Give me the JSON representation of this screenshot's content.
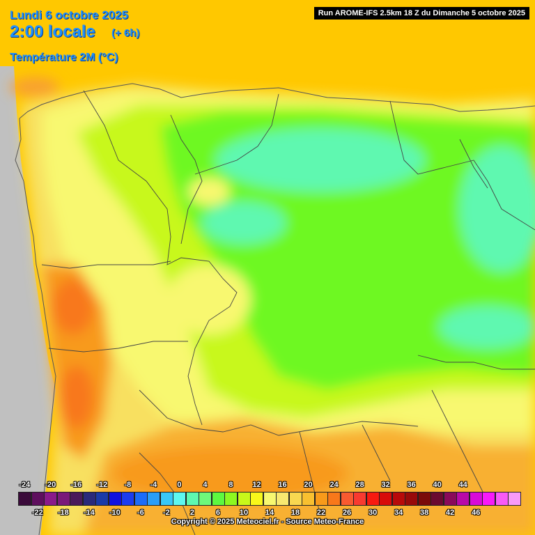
{
  "header": {
    "date": "Lundi 6 octobre 2025",
    "time": "2:00 locale",
    "offset": "(+ 6h)",
    "variable": "Température 2M (°C)",
    "run": "Run AROME-IFS 2.5km 18 Z du Dimanche 5 octobre 2025"
  },
  "legend": {
    "top_labels": [
      "-24",
      "-20",
      "-16",
      "-12",
      "-8",
      "-4",
      "0",
      "4",
      "8",
      "12",
      "16",
      "20",
      "24",
      "28",
      "32",
      "36",
      "40",
      "44"
    ],
    "bottom_labels": [
      "-22",
      "-18",
      "-14",
      "-10",
      "-6",
      "-2",
      "2",
      "6",
      "10",
      "14",
      "18",
      "22",
      "26",
      "30",
      "34",
      "38",
      "42",
      "46"
    ],
    "colors": [
      "#3a0a3a",
      "#5e0f5e",
      "#8a1a8a",
      "#7a1a7a",
      "#4a1a5a",
      "#2a2a7a",
      "#1a3aa8",
      "#1010e0",
      "#1c3cf0",
      "#1c6cf8",
      "#2a9ef8",
      "#38c8f8",
      "#5ef8f0",
      "#5ef8b0",
      "#6ef87a",
      "#5ef840",
      "#8ef820",
      "#c8f81a",
      "#f8f81a",
      "#f8f870",
      "#f8e870",
      "#f8d850",
      "#f8c030",
      "#f89a1a",
      "#f8781a",
      "#f85a30",
      "#f83a30",
      "#f81a10",
      "#d80a0a",
      "#b80a0a",
      "#980a0a",
      "#7a0a0a",
      "#6a0a30",
      "#8a0a5a",
      "#b80aa8",
      "#d80ad8",
      "#f81af8",
      "#f85af8",
      "#f89af8"
    ],
    "copyright": "Copyright © 2025 Meteociel.fr - Source Meteo-France"
  }
}
